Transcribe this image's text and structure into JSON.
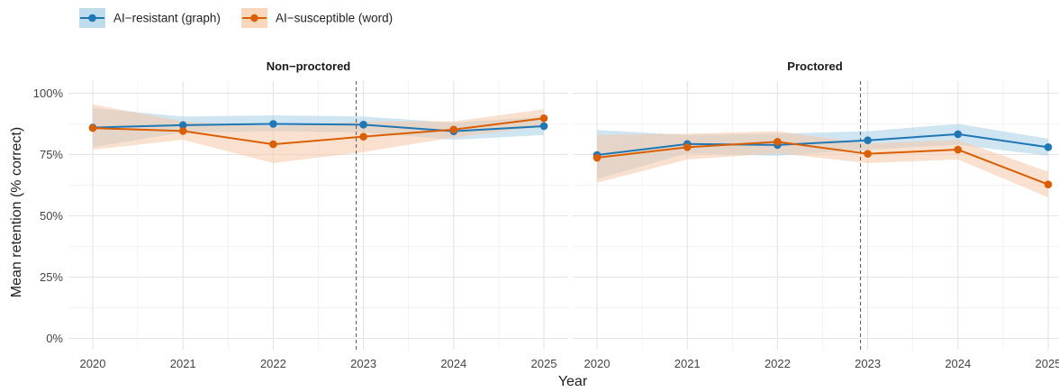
{
  "chart_data": {
    "type": "line",
    "ylabel": "Mean retention (% correct)",
    "xlabel": "Year",
    "x": [
      2020,
      2021,
      2022,
      2023,
      2024,
      2025
    ],
    "x_tick_labels": [
      "2020",
      "2021",
      "2022",
      "2023",
      "2024",
      "2025"
    ],
    "ylim": [
      0,
      100
    ],
    "y_ticks": [
      0,
      25,
      50,
      75,
      100
    ],
    "y_tick_labels": [
      "0%",
      "25%",
      "50%",
      "75%",
      "100%"
    ],
    "grid": true,
    "legend_placement": "top-left",
    "reference_line_x": 2022.92,
    "series_meta": [
      {
        "key": "graph",
        "name": "AI−resistant (graph)",
        "color": "#1f77b4",
        "band_color": "#a9cfe8"
      },
      {
        "key": "word",
        "name": "AI−susceptible (word)",
        "color": "#d95f02",
        "band_color": "#f6c9a7"
      }
    ],
    "panels": [
      {
        "title": "Non−proctored",
        "series": [
          {
            "key": "graph",
            "values": [
              86,
              87,
              87.5,
              87.2,
              84.5,
              86.6
            ],
            "ci_low": [
              78,
              84,
              84.5,
              84,
              81,
              83
            ],
            "ci_high": [
              94,
              90.5,
              91,
              90.5,
              88,
              90.5
            ]
          },
          {
            "key": "word",
            "values": [
              85.8,
              84.6,
              79.2,
              82.3,
              85.2,
              89.8
            ],
            "ci_low": [
              77,
              81,
              71.5,
              76,
              82,
              86.5
            ],
            "ci_high": [
              95.5,
              88.5,
              86.5,
              88.5,
              88.5,
              93.5
            ]
          }
        ]
      },
      {
        "title": "Proctored",
        "series": [
          {
            "key": "graph",
            "values": [
              74.8,
              79.3,
              78.9,
              80.8,
              83.3,
              78
            ],
            "ci_low": [
              65,
              75.5,
              74.5,
              77,
              79,
              74.5
            ],
            "ci_high": [
              85,
              83,
              83.5,
              84.5,
              87.5,
              81.5
            ]
          },
          {
            "key": "word",
            "values": [
              73.7,
              78,
              80.2,
              75.3,
              77,
              62.8
            ],
            "ci_low": [
              63.5,
              73,
              75.5,
              71.5,
              73,
              57.5
            ],
            "ci_high": [
              83,
              83.5,
              84.5,
              79.5,
              81,
              68
            ]
          }
        ]
      }
    ]
  }
}
